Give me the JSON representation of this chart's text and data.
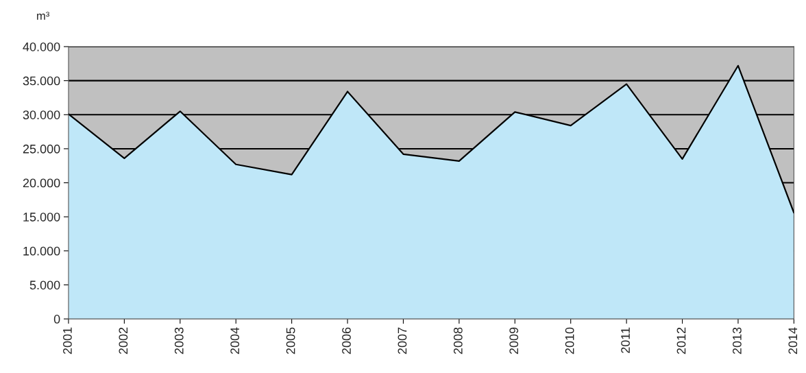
{
  "chart_data": {
    "type": "area",
    "ylabel": "m³",
    "categories": [
      "2001",
      "2002",
      "2003",
      "2004",
      "2005",
      "2006",
      "2007",
      "2008",
      "2009",
      "2010",
      "2011",
      "2012",
      "2013",
      "2014"
    ],
    "series": [
      {
        "color": "#bfe7f8",
        "values": [
          30100,
          23600,
          30500,
          22700,
          21200,
          33400,
          24200,
          23200,
          30400,
          28400,
          34500,
          23500,
          37200,
          15600
        ]
      }
    ],
    "ylim": [
      0,
      40000
    ],
    "yticks": [
      0,
      {
        "value": 5000,
        "label": "5.000"
      },
      {
        "value": 10000,
        "label": "10.000"
      },
      {
        "value": 15000,
        "label": "15.000"
      },
      {
        "value": 20000,
        "label": "20.000"
      },
      {
        "value": 25000,
        "label": "25.000"
      },
      {
        "value": 30000,
        "label": "30.000"
      },
      {
        "value": 35000,
        "label": "35.000"
      },
      {
        "value": 40000,
        "label": "40.000"
      }
    ],
    "grid": "y",
    "legend": false
  }
}
